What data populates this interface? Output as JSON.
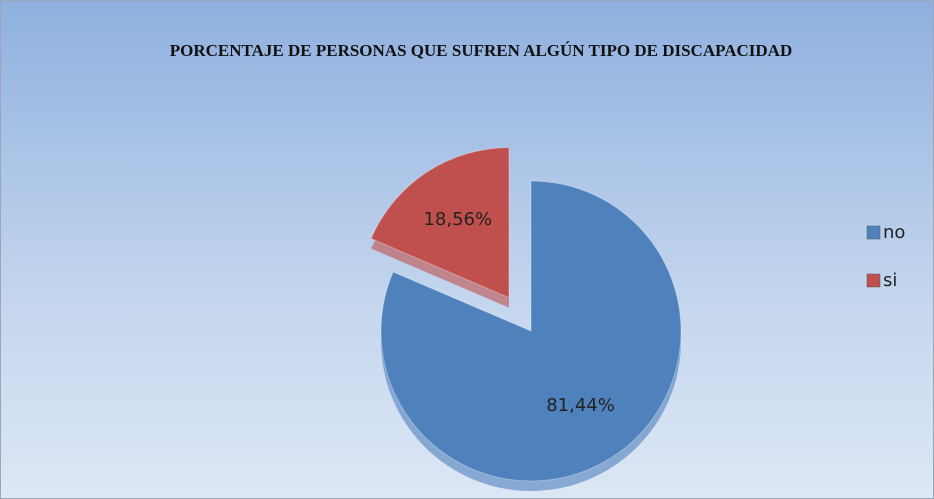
{
  "chart_data": {
    "type": "pie",
    "title": "PORCENTAJE DE PERSONAS QUE SUFREN ALGÚN TIPO DE DISCAPACIDAD",
    "categories": [
      "no",
      "si"
    ],
    "values": [
      81.44,
      18.56
    ],
    "value_labels": [
      "81,44%",
      "18,56%"
    ],
    "colors": [
      "#4f81bd",
      "#c0504d"
    ],
    "legend": "right"
  }
}
